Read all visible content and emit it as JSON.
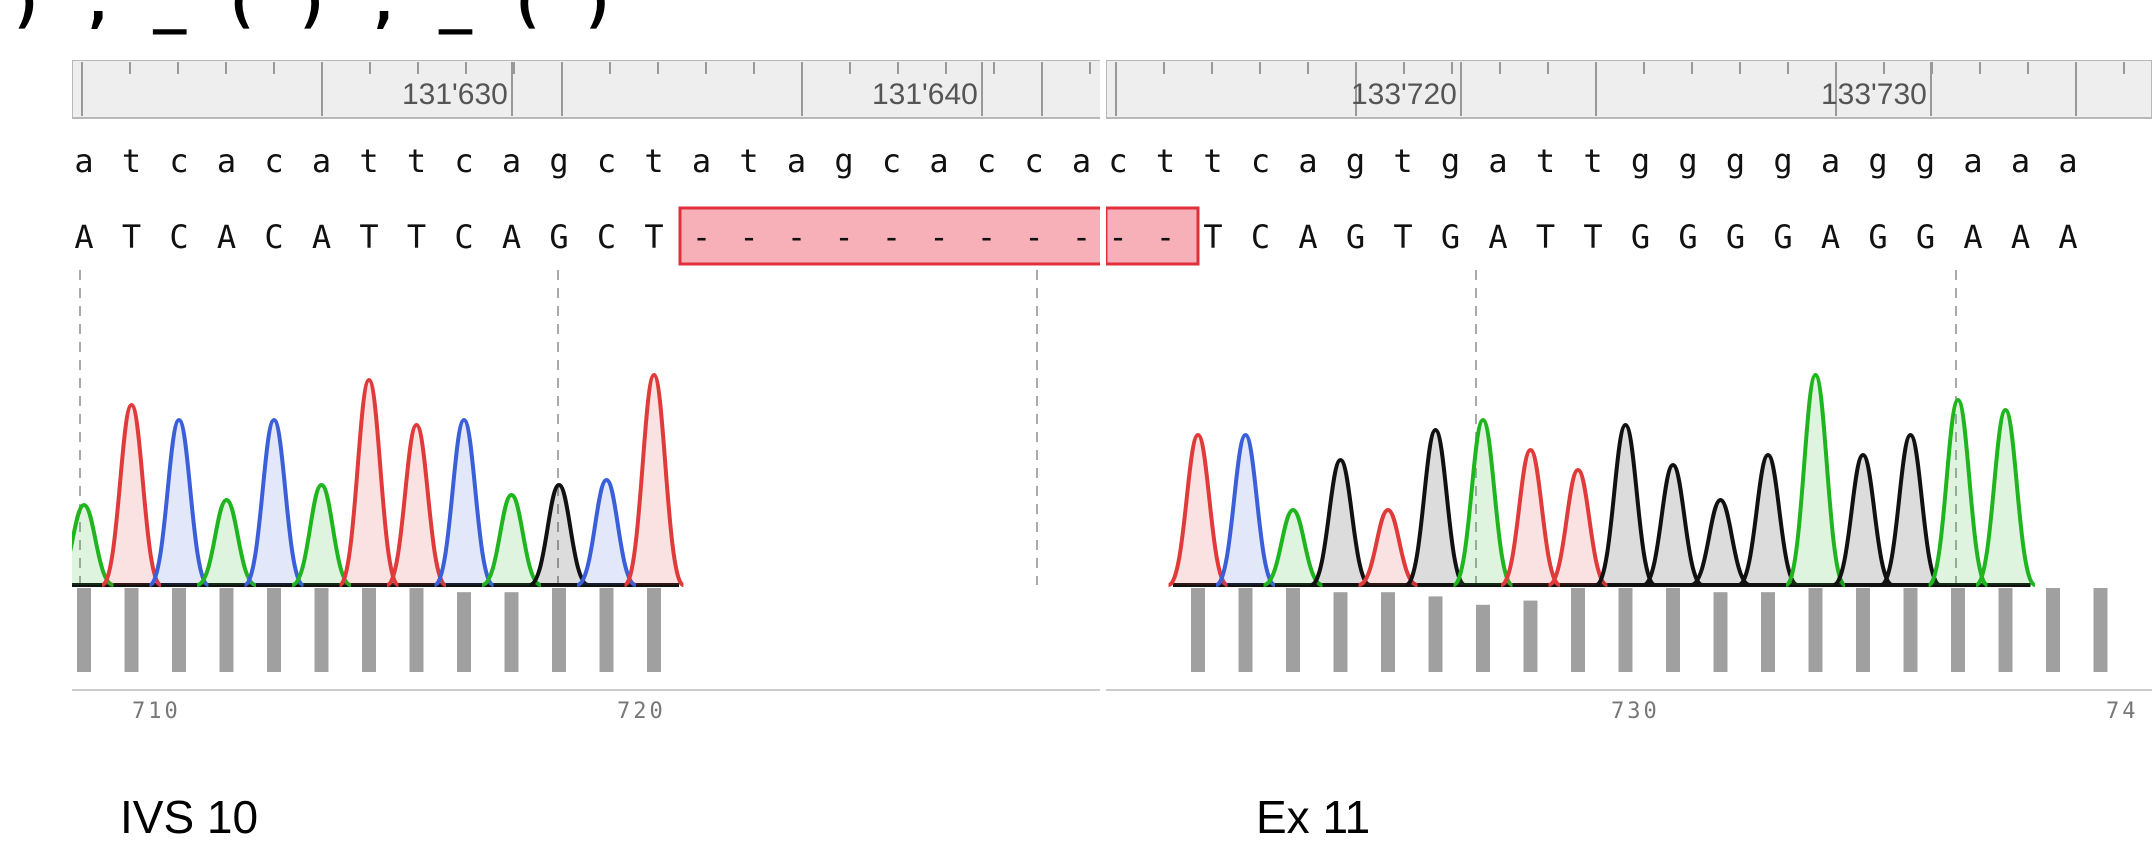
{
  "header_fragment": ") , _ ( ) , _ ( )",
  "colors": {
    "A": "#1fb51f",
    "C": "#3a5fd9",
    "G": "#111111",
    "T": "#e03a3a",
    "deletion_fill": "#f7b0b8",
    "deletion_border": "#e0303a",
    "quality_bar": "#a0a0a0",
    "ruler_bg": "#eeeeee"
  },
  "left_panel": {
    "ruler_ticks": [
      "131'630",
      "131'640"
    ],
    "reference_seq": [
      "a",
      "t",
      "c",
      "a",
      "c",
      "a",
      "t",
      "t",
      "c",
      "a",
      "g",
      "c",
      "t",
      "a",
      "t",
      "a",
      "g",
      "c",
      "a",
      "c",
      "c",
      "a"
    ],
    "read_seq": [
      "A",
      "T",
      "C",
      "A",
      "C",
      "A",
      "T",
      "T",
      "C",
      "A",
      "G",
      "C",
      "T",
      "-",
      "-",
      "-",
      "-",
      "-",
      "-",
      "-",
      "-",
      "-",
      "-"
    ],
    "peaks": [
      "A",
      "T",
      "C",
      "A",
      "C",
      "A",
      "T",
      "T",
      "C",
      "A",
      "G",
      "C",
      "T"
    ],
    "quality": [
      40,
      40,
      40,
      40,
      40,
      40,
      40,
      40,
      38,
      38,
      40,
      40,
      40
    ],
    "position_labels": [
      "710",
      "720"
    ],
    "caption": "IVS 10"
  },
  "right_panel": {
    "ruler_ticks": [
      "133'720",
      "133'730"
    ],
    "reference_seq": [
      "c",
      "t",
      "t",
      "c",
      "a",
      "g",
      "t",
      "g",
      "a",
      "t",
      "t",
      "g",
      "g",
      "g",
      "g",
      "a",
      "g",
      "g",
      "a",
      "a",
      "a"
    ],
    "read_seq": [
      "-",
      "-",
      "T",
      "C",
      "A",
      "G",
      "T",
      "G",
      "A",
      "T",
      "T",
      "G",
      "G",
      "G",
      "G",
      "A",
      "G",
      "G",
      "A",
      "A",
      "A"
    ],
    "peaks": [
      "T",
      "C",
      "A",
      "G",
      "T",
      "G",
      "A",
      "T",
      "T",
      "G",
      "G",
      "G",
      "G",
      "A",
      "G",
      "G",
      "A",
      "A"
    ],
    "quality": [
      40,
      40,
      40,
      38,
      38,
      36,
      32,
      34,
      40,
      40,
      40,
      38,
      38,
      40,
      40,
      40,
      40,
      40,
      40,
      40
    ],
    "position_labels": [
      "730",
      "74"
    ],
    "caption": "Ex 11"
  }
}
